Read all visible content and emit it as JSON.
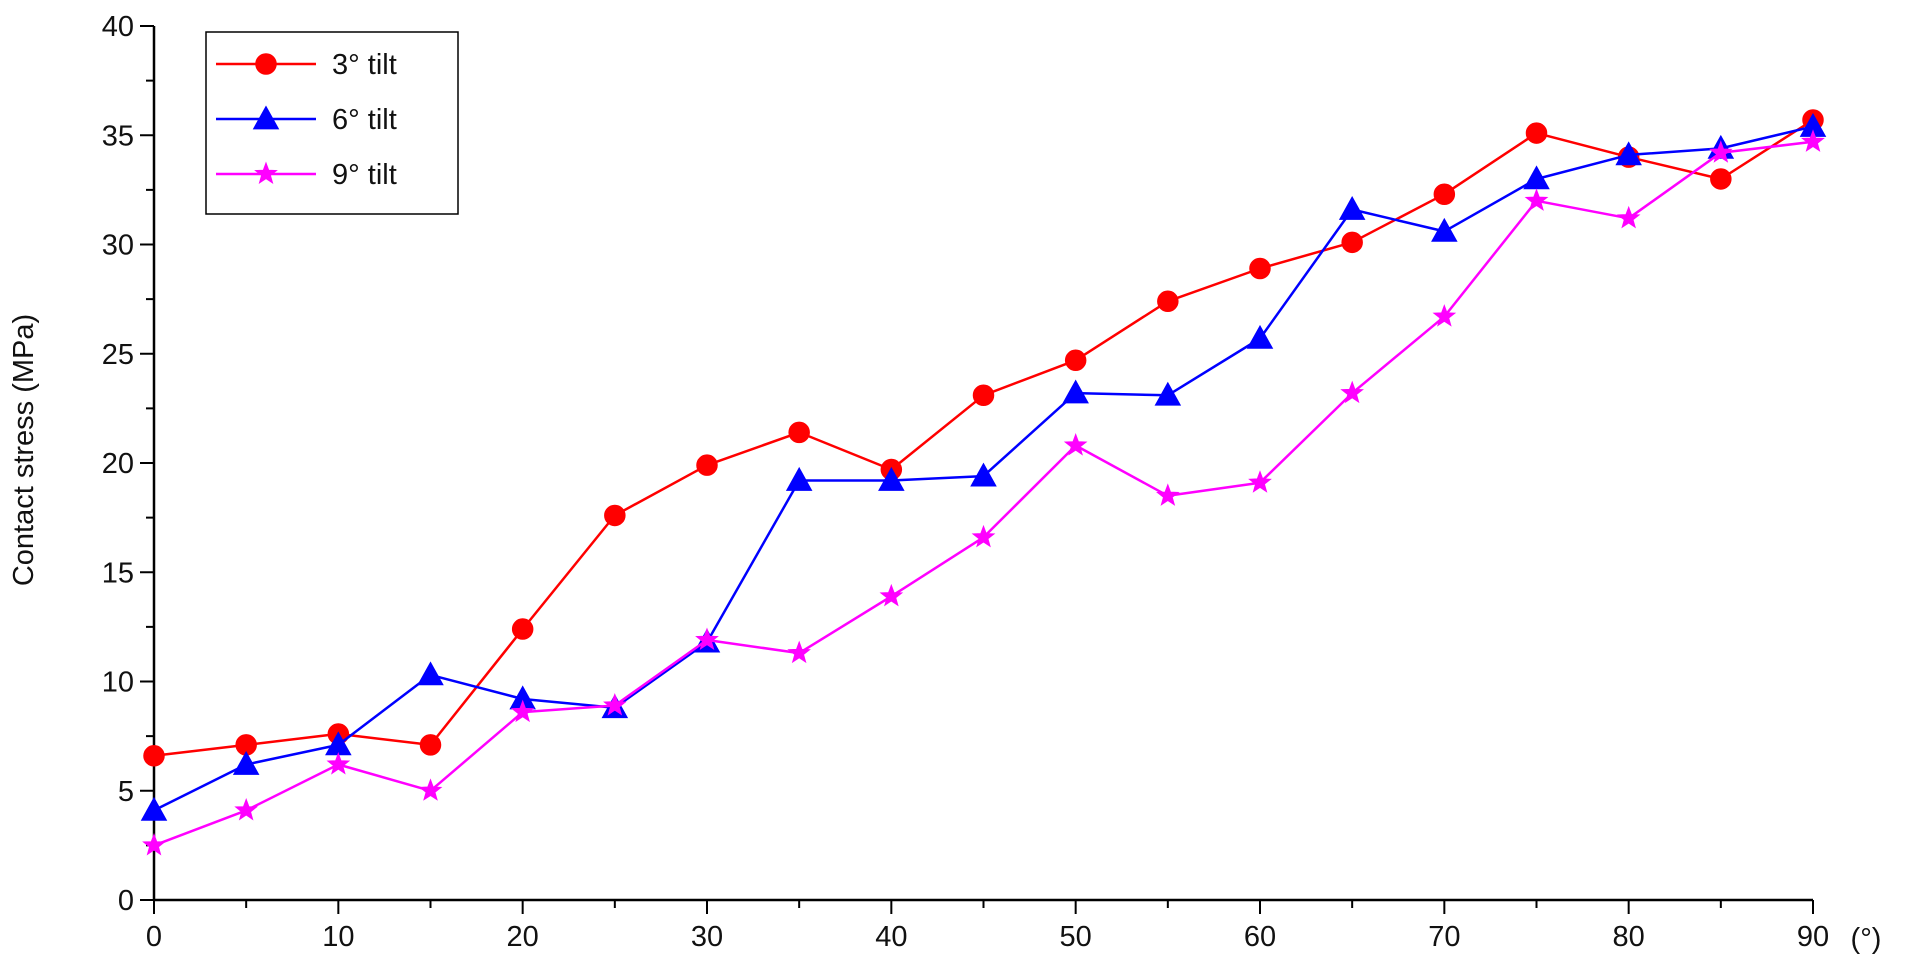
{
  "chart_data": {
    "type": "line",
    "title": "",
    "xlabel": "",
    "x_unit_label": "(°)",
    "ylabel": "Contact stress (MPa)",
    "xlim": [
      0,
      90
    ],
    "ylim": [
      0,
      40
    ],
    "x_ticks": [
      0,
      10,
      20,
      30,
      40,
      50,
      60,
      70,
      80,
      90
    ],
    "y_ticks": [
      0,
      5,
      10,
      15,
      20,
      25,
      30,
      35,
      40
    ],
    "grid": false,
    "legend_position": "top-left",
    "x": [
      0,
      5,
      10,
      15,
      20,
      25,
      30,
      35,
      40,
      45,
      50,
      55,
      60,
      65,
      70,
      75,
      80,
      85,
      90
    ],
    "series": [
      {
        "name": "3° tilt",
        "color": "#ff0000",
        "marker": "circle",
        "values": [
          6.6,
          7.1,
          7.6,
          7.1,
          12.4,
          17.6,
          19.9,
          21.4,
          19.7,
          23.1,
          24.7,
          27.4,
          28.9,
          30.1,
          32.3,
          35.1,
          34.0,
          33.0,
          35.7
        ]
      },
      {
        "name": "6° tilt",
        "color": "#0000ff",
        "marker": "triangle",
        "values": [
          4.1,
          6.2,
          7.1,
          10.3,
          9.2,
          8.8,
          11.8,
          19.2,
          19.2,
          19.4,
          23.2,
          23.1,
          25.7,
          31.6,
          30.6,
          33.0,
          34.1,
          34.4,
          35.4
        ]
      },
      {
        "name": "9° tilt",
        "color": "#ff00ff",
        "marker": "star",
        "values": [
          2.5,
          4.1,
          6.2,
          5.0,
          8.6,
          8.9,
          11.9,
          11.3,
          13.9,
          16.6,
          20.8,
          18.5,
          19.1,
          23.2,
          26.7,
          32.0,
          31.2,
          34.2,
          34.7
        ]
      }
    ]
  }
}
